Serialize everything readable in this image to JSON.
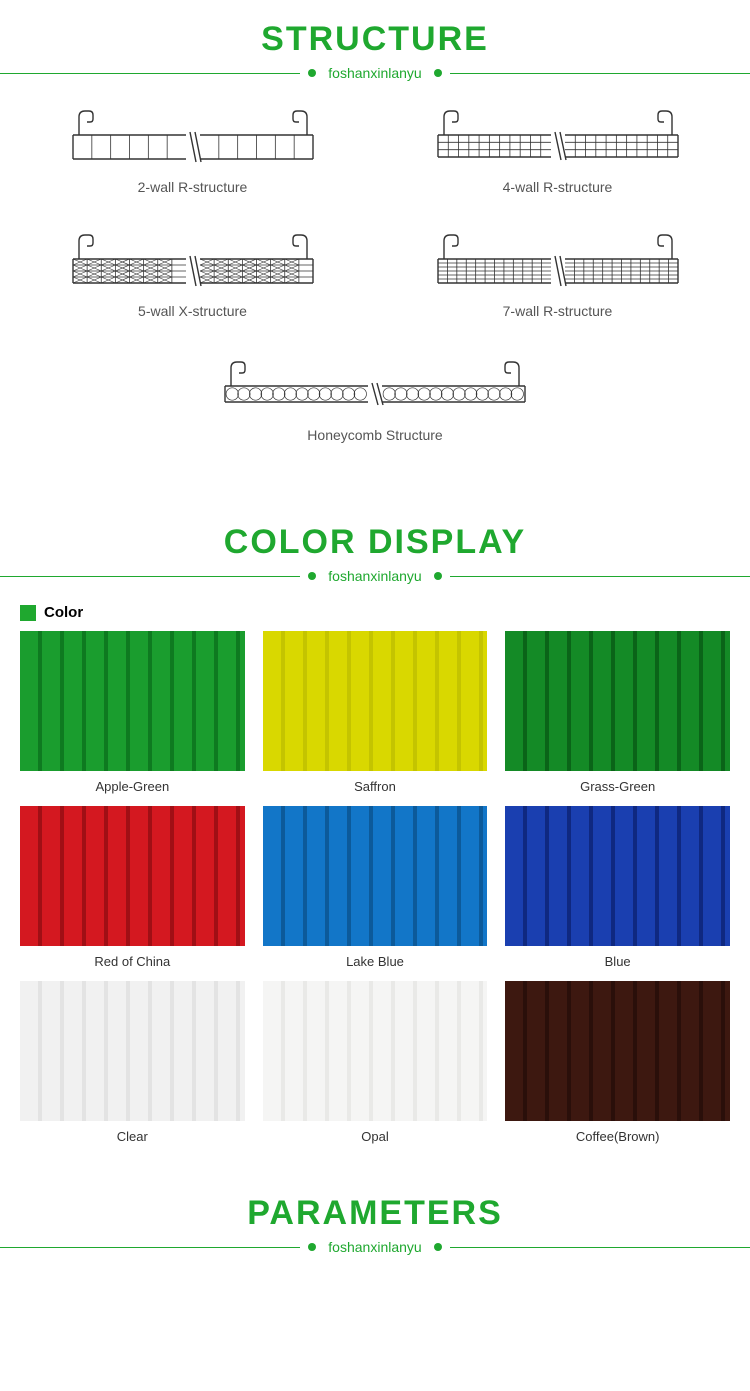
{
  "accent_color": "#1fa82f",
  "text_gray": "#666666",
  "line_gray": "#cccccc",
  "sections": {
    "structure": {
      "title": "STRUCTURE",
      "subtitle": "foshanxinlanyu"
    },
    "color": {
      "title": "COLOR DISPLAY",
      "subtitle": "foshanxinlanyu",
      "badge_label": "Color"
    },
    "parameters": {
      "title": "PARAMETERS",
      "subtitle": "foshanxinlanyu"
    }
  },
  "structures": [
    {
      "label": "2-wall R-structure",
      "type": "2wall"
    },
    {
      "label": "4-wall R-structure",
      "type": "4wall"
    },
    {
      "label": "5-wall X-structure",
      "type": "5wallX"
    },
    {
      "label": "7-wall R-structure",
      "type": "7wall"
    },
    {
      "label": "Honeycomb Structure",
      "type": "honeycomb"
    }
  ],
  "swatches": [
    {
      "label": "Apple-Green",
      "base": "#1a9d2e",
      "stripe": "#0e7a20"
    },
    {
      "label": "Saffron",
      "base": "#d9d800",
      "stripe": "#c4c400"
    },
    {
      "label": "Grass-Green",
      "base": "#148a26",
      "stripe": "#0a6418"
    },
    {
      "label": "Red of China",
      "base": "#d41820",
      "stripe": "#a00f15"
    },
    {
      "label": "Lake Blue",
      "base": "#1276c8",
      "stripe": "#0c5a9a"
    },
    {
      "label": "Blue",
      "base": "#1a3fb0",
      "stripe": "#0f2880"
    },
    {
      "label": "Clear",
      "base": "#f1f1f1",
      "stripe": "#e3e3e3"
    },
    {
      "label": "Opal",
      "base": "#f5f5f4",
      "stripe": "#e9e9e7"
    },
    {
      "label": "Coffee(Brown)",
      "base": "#3d1810",
      "stripe": "#2a0f0a"
    }
  ],
  "struct_stroke": "#333333",
  "struct_stroke_width": 1.4
}
